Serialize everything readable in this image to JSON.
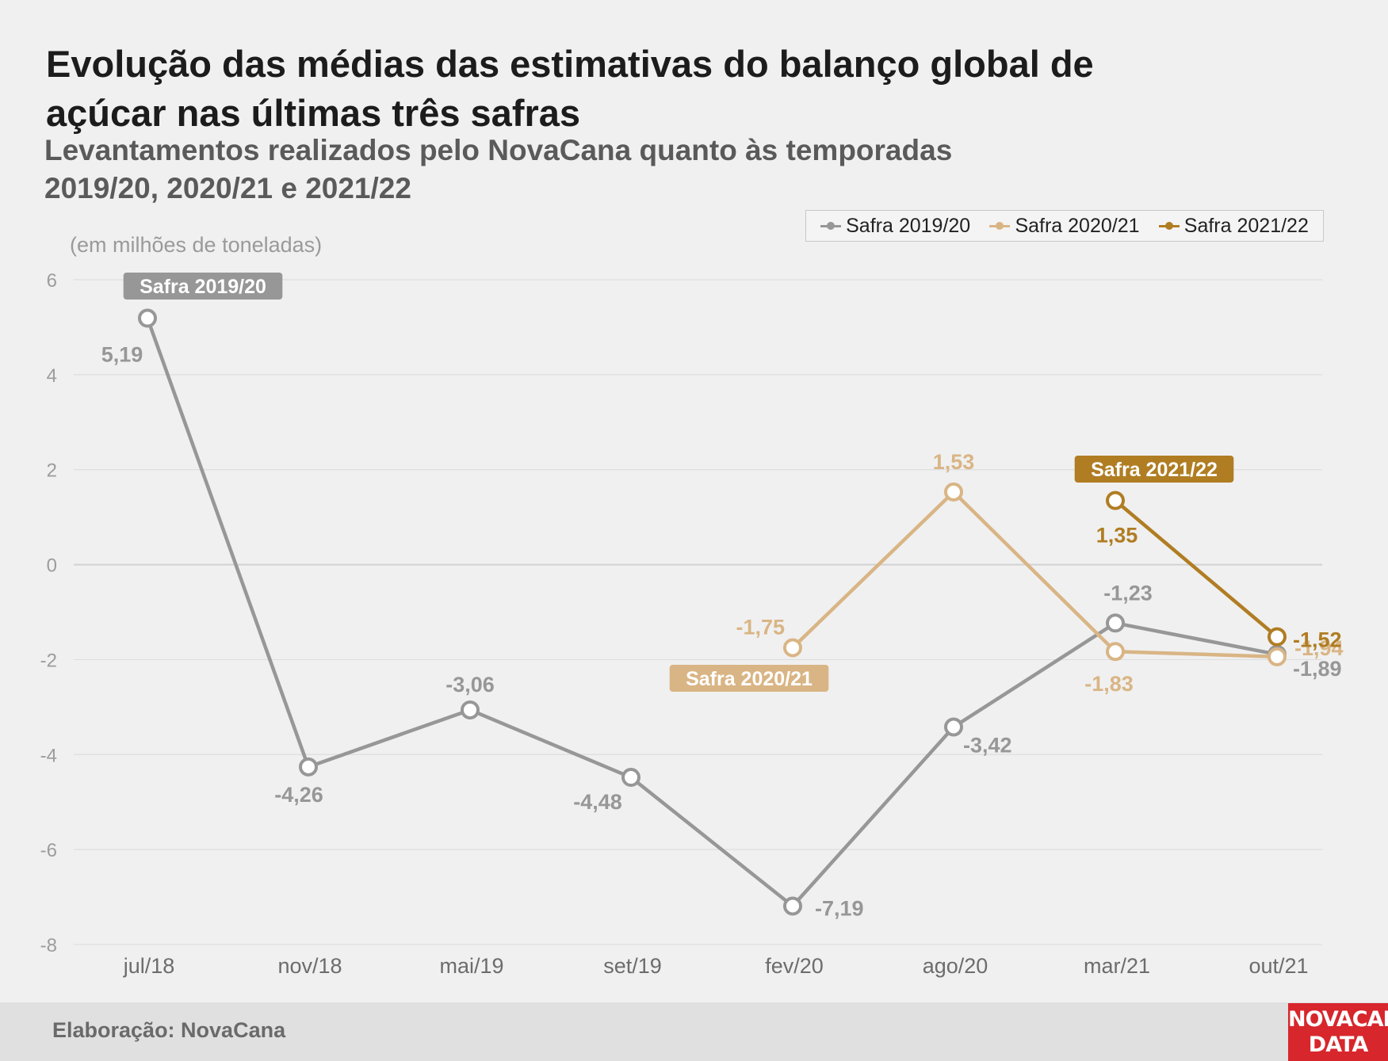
{
  "title": "Evolução das médias das estimativas do balanço global de açúcar nas últimas três safras",
  "subtitle": "Levantamentos realizados pelo NovaCana quanto às temporadas 2019/20, 2020/21 e 2021/22",
  "unit_label": "(em milhões de toneladas)",
  "footer": {
    "credit": "Elaboração: NovaCana",
    "logo_line1": "NOVACANA",
    "logo_line2": "DATA"
  },
  "colors": {
    "s1": "#979797",
    "s2": "#d9b585",
    "s3": "#b07d23",
    "grid": "#dedede",
    "axis_text": "#9c9c9c"
  },
  "chart_data": {
    "type": "line",
    "title": "Evolução das médias das estimativas do balanço global de açúcar nas últimas três safras",
    "ylabel": "(em milhões de toneladas)",
    "xlabel": "",
    "categories": [
      "jul/18",
      "nov/18",
      "mai/19",
      "set/19",
      "fev/20",
      "ago/20",
      "mar/21",
      "out/21"
    ],
    "ylim": [
      -8,
      6
    ],
    "yticks": [
      6,
      4,
      2,
      0,
      -2,
      -4,
      -6,
      -8
    ],
    "ytick_labels": [
      "6",
      "4",
      "2",
      "0",
      "-2",
      "-4",
      "-6",
      "-8"
    ],
    "grid": true,
    "legend": "top-right",
    "series": [
      {
        "name": "Safra 2019/20",
        "color": "#979797",
        "values": [
          5.19,
          -4.26,
          -3.06,
          -4.48,
          -7.19,
          -3.42,
          -1.23,
          -1.89
        ],
        "labels": [
          "5,19",
          "-4,26",
          "-3,06",
          "-4,48",
          "-7,19",
          "-3,42",
          "-1,23",
          "-1,89"
        ]
      },
      {
        "name": "Safra 2020/21",
        "color": "#d9b585",
        "values": [
          null,
          null,
          null,
          null,
          -1.75,
          1.53,
          -1.83,
          -1.94
        ],
        "labels": [
          null,
          null,
          null,
          null,
          "-1,75",
          "1,53",
          "-1,83",
          "-1,94"
        ]
      },
      {
        "name": "Safra 2021/22",
        "color": "#b07d23",
        "values": [
          null,
          null,
          null,
          null,
          null,
          null,
          1.35,
          -1.52
        ],
        "labels": [
          null,
          null,
          null,
          null,
          null,
          null,
          "1,35",
          "-1,52"
        ]
      }
    ],
    "annotations": [
      "Safra 2019/20",
      "Safra 2020/21",
      "Safra 2021/22"
    ]
  }
}
